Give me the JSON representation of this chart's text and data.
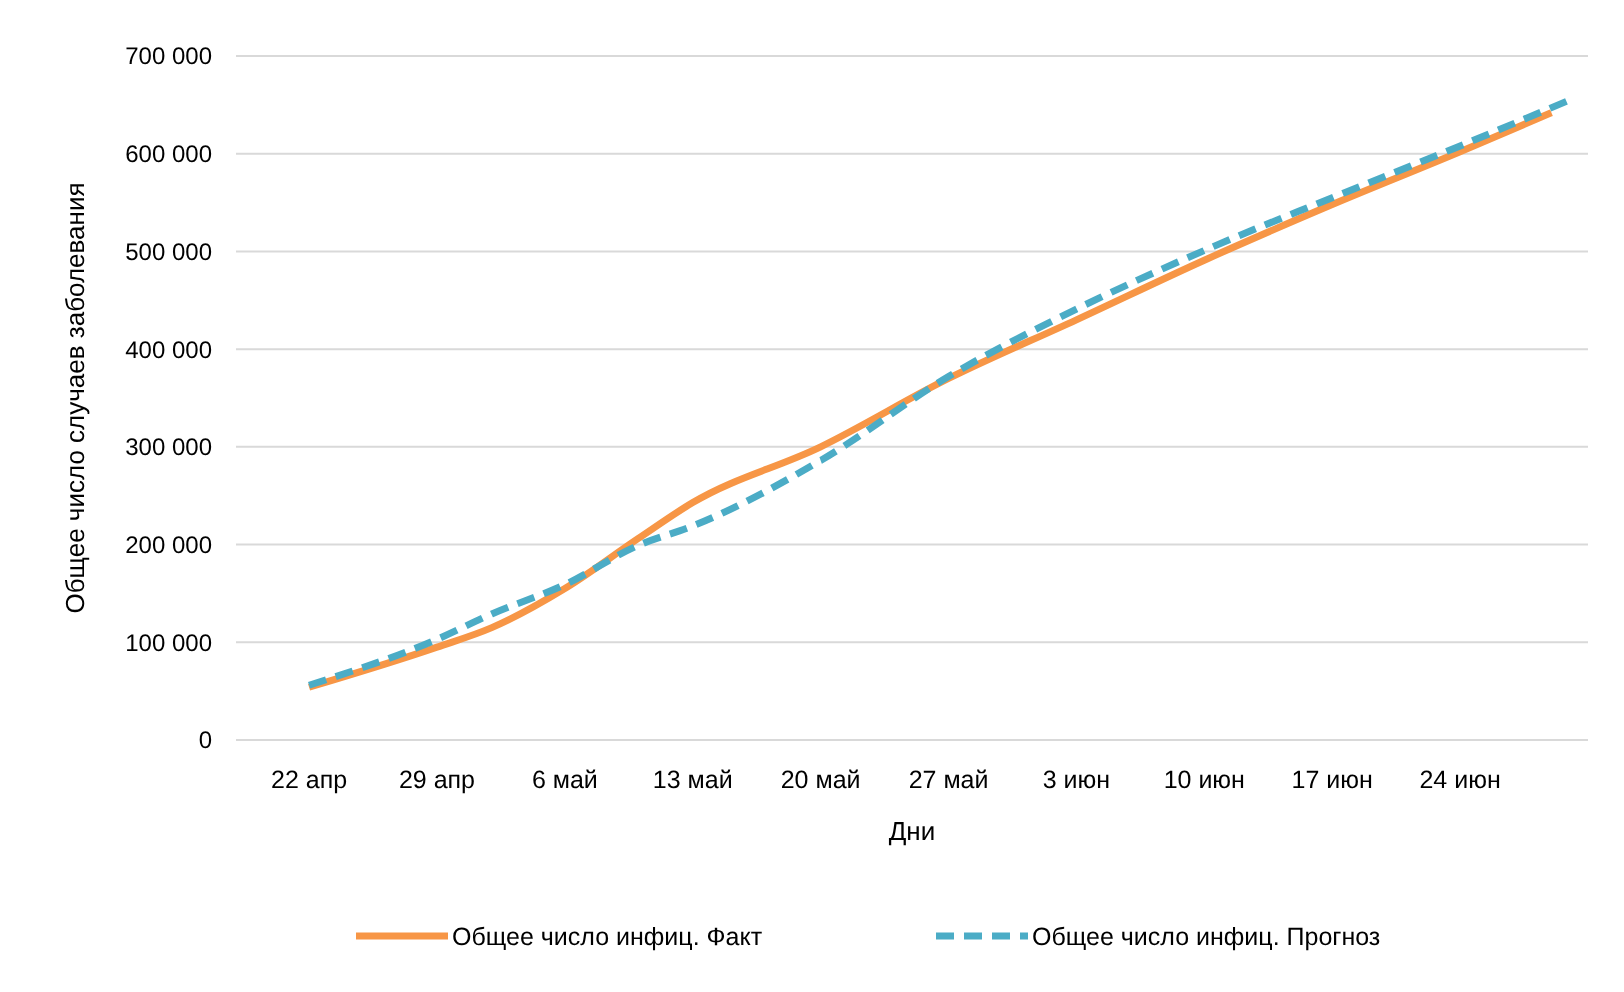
{
  "chart_data": {
    "type": "line",
    "xlabel": "Дни",
    "ylabel": "Общее число случаев заболевания",
    "xlim": [
      "--04-18",
      "--07-01"
    ],
    "ylim": [
      0,
      700000
    ],
    "xticks": [
      {
        "value": "--04-22",
        "label": "22 апр"
      },
      {
        "value": "--04-29",
        "label": "29 апр"
      },
      {
        "value": "--05-06",
        "label": "6 май"
      },
      {
        "value": "--05-13",
        "label": "13 май"
      },
      {
        "value": "--05-20",
        "label": "20 май"
      },
      {
        "value": "--05-27",
        "label": "27 май"
      },
      {
        "value": "--06-03",
        "label": "3 июн"
      },
      {
        "value": "--06-10",
        "label": "10 июн"
      },
      {
        "value": "--06-17",
        "label": "17 июн"
      },
      {
        "value": "--06-24",
        "label": "24 июн"
      }
    ],
    "yticks": [
      {
        "value": 0,
        "label": "0"
      },
      {
        "value": 100000,
        "label": "100 000"
      },
      {
        "value": 200000,
        "label": "200 000"
      },
      {
        "value": 300000,
        "label": "300 000"
      },
      {
        "value": 400000,
        "label": "400 000"
      },
      {
        "value": 500000,
        "label": "500 000"
      },
      {
        "value": 600000,
        "label": "600 000"
      },
      {
        "value": 700000,
        "label": "700 000"
      }
    ],
    "grid": "y",
    "legend": "bottom",
    "series": [
      {
        "name": "Общее число инфиц. Факт",
        "color": "#f79646",
        "line_style": "solid",
        "x": [
          "--04-22",
          "--04-29",
          "--05-02",
          "--05-06",
          "--05-10",
          "--05-13",
          "--05-20",
          "--05-27",
          "--06-03",
          "--06-10",
          "--06-17",
          "--06-24",
          "--06-29"
        ],
        "values": [
          54000,
          95000,
          115000,
          155000,
          206000,
          243000,
          300000,
          370000,
          430000,
          491000,
          548000,
          602000,
          642000
        ]
      },
      {
        "name": "Общее число инфиц. Прогноз",
        "color": "#4bacc6",
        "line_style": "dashed",
        "x": [
          "--04-22",
          "--04-29",
          "--05-02",
          "--05-06",
          "--05-10",
          "--05-13",
          "--05-20",
          "--05-27",
          "--06-03",
          "--06-10",
          "--06-17",
          "--06-24",
          "--06-30"
        ],
        "values": [
          56000,
          103000,
          129000,
          159000,
          199000,
          219000,
          286000,
          372000,
          441000,
          501000,
          555000,
          608000,
          655000
        ]
      }
    ]
  }
}
